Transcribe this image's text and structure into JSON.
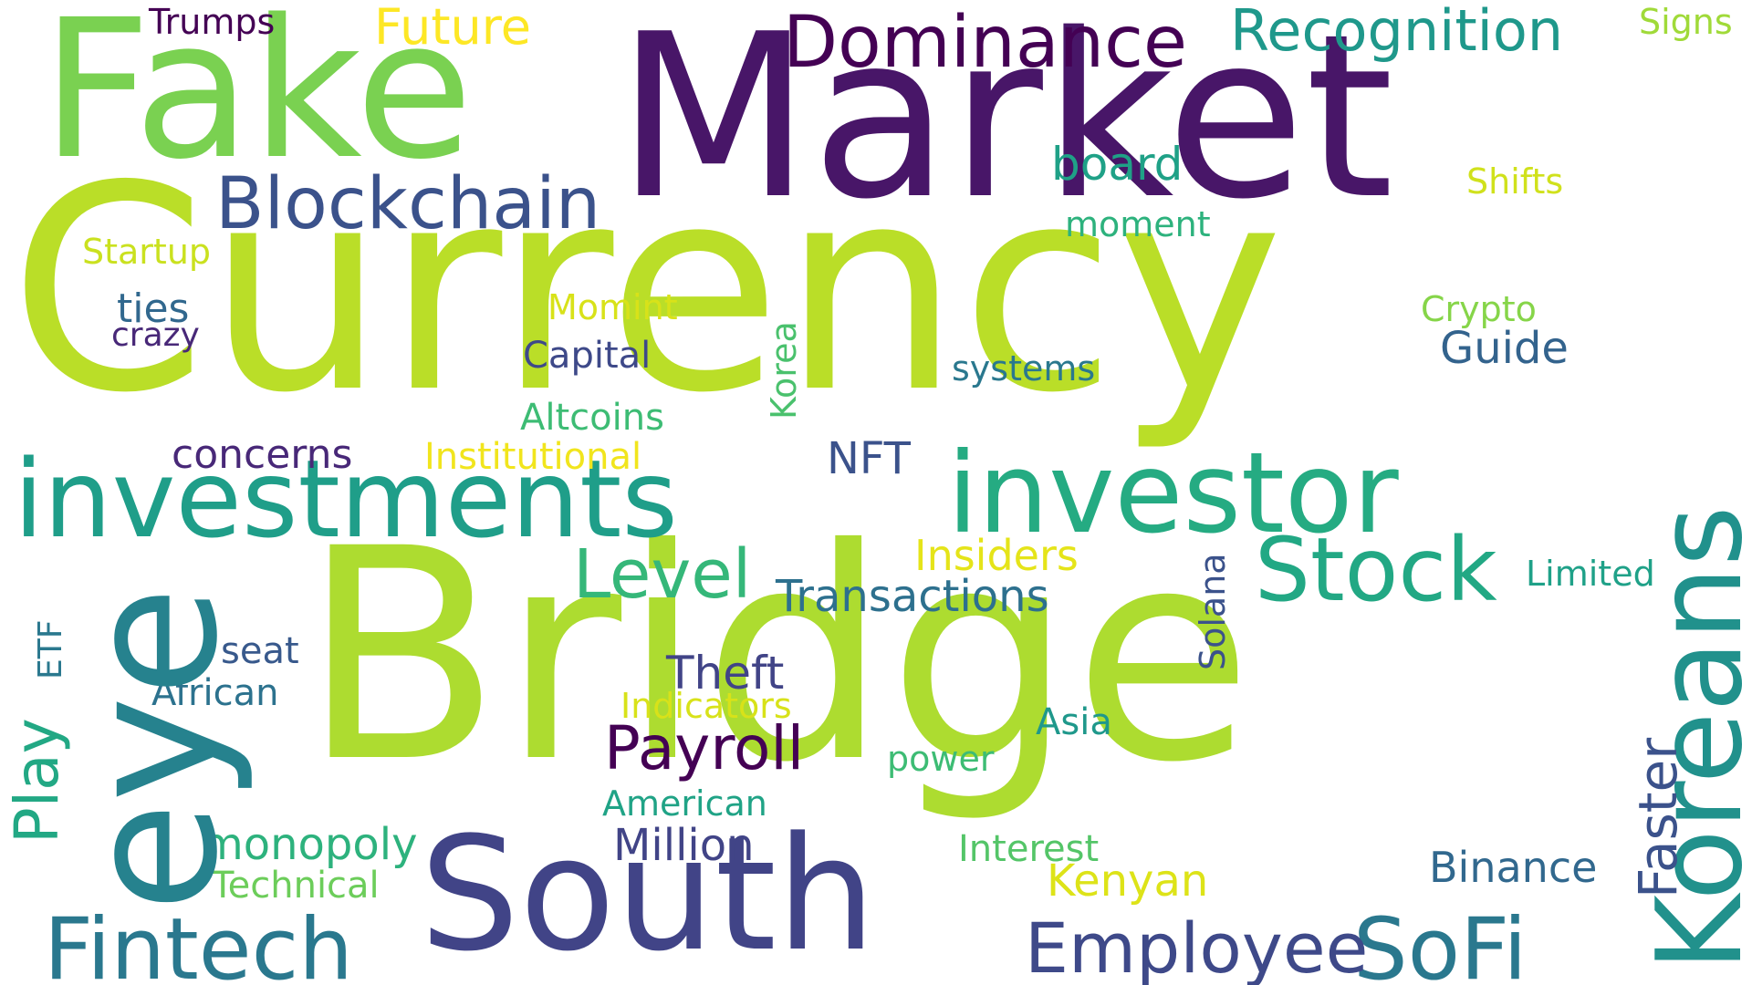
{
  "words": [
    {
      "text": "Currency",
      "color": "#bade28"
    },
    {
      "text": "Market",
      "color": "#481668"
    },
    {
      "text": "Bridge",
      "color": "#addc30"
    },
    {
      "text": "Fake",
      "color": "#7ad151"
    },
    {
      "text": "eye",
      "color": "#26828e"
    },
    {
      "text": "investments",
      "color": "#1f9e89"
    },
    {
      "text": "investor",
      "color": "#25ab82"
    },
    {
      "text": "South",
      "color": "#414487"
    },
    {
      "text": "Koreans",
      "color": "#21918c"
    },
    {
      "text": "Fintech",
      "color": "#2a788e"
    },
    {
      "text": "Dominance",
      "color": "#440154"
    },
    {
      "text": "Recognition",
      "color": "#1f988b"
    },
    {
      "text": "Blockchain",
      "color": "#3b528b"
    },
    {
      "text": "Stock",
      "color": "#22a884"
    },
    {
      "text": "SoFi",
      "color": "#2a788e"
    },
    {
      "text": "Employee",
      "color": "#3e4989"
    },
    {
      "text": "Payroll",
      "color": "#440154"
    },
    {
      "text": "Level",
      "color": "#35b779"
    },
    {
      "text": "Future",
      "color": "#fde725"
    },
    {
      "text": "board",
      "color": "#1fa187"
    },
    {
      "text": "Trumps",
      "color": "#440154"
    },
    {
      "text": "Signs",
      "color": "#a0da39"
    },
    {
      "text": "Shifts",
      "color": "#d0e11c"
    },
    {
      "text": "moment",
      "color": "#2db27d"
    },
    {
      "text": "Startup",
      "color": "#cae11f"
    },
    {
      "text": "ties",
      "color": "#31688e"
    },
    {
      "text": "crazy",
      "color": "#482878"
    },
    {
      "text": "Momint",
      "color": "#d8e219"
    },
    {
      "text": "Capital",
      "color": "#3e4989"
    },
    {
      "text": "Korea",
      "color": "#4ac16d"
    },
    {
      "text": "systems",
      "color": "#2a788e"
    },
    {
      "text": "Crypto",
      "color": "#86d549"
    },
    {
      "text": "Guide",
      "color": "#33638d"
    },
    {
      "text": "Altcoins",
      "color": "#3dbc74"
    },
    {
      "text": "concerns",
      "color": "#482878"
    },
    {
      "text": "Institutional",
      "color": "#f1e51d"
    },
    {
      "text": "NFT",
      "color": "#3b528b"
    },
    {
      "text": "Insiders",
      "color": "#e5e419"
    },
    {
      "text": "Transactions",
      "color": "#2d708e"
    },
    {
      "text": "Limited",
      "color": "#1fa188"
    },
    {
      "text": "Solana",
      "color": "#3b528b"
    },
    {
      "text": "Theft",
      "color": "#414487"
    },
    {
      "text": "Indicators",
      "color": "#d8e219"
    },
    {
      "text": "Asia",
      "color": "#1f988b"
    },
    {
      "text": "power",
      "color": "#3dbc74"
    },
    {
      "text": "American",
      "color": "#20a386"
    },
    {
      "text": "Million",
      "color": "#414487"
    },
    {
      "text": "Interest",
      "color": "#54c568"
    },
    {
      "text": "Kenyan",
      "color": "#dde318"
    },
    {
      "text": "Binance",
      "color": "#31688e"
    },
    {
      "text": "Faster",
      "color": "#3b528b"
    },
    {
      "text": "seat",
      "color": "#38598c"
    },
    {
      "text": "African",
      "color": "#2c728e"
    },
    {
      "text": "ETF",
      "color": "#2a788e"
    },
    {
      "text": "Play",
      "color": "#22a884"
    },
    {
      "text": "monopoly",
      "color": "#2db27d"
    },
    {
      "text": "Technical",
      "color": "#6ccd5a"
    }
  ]
}
